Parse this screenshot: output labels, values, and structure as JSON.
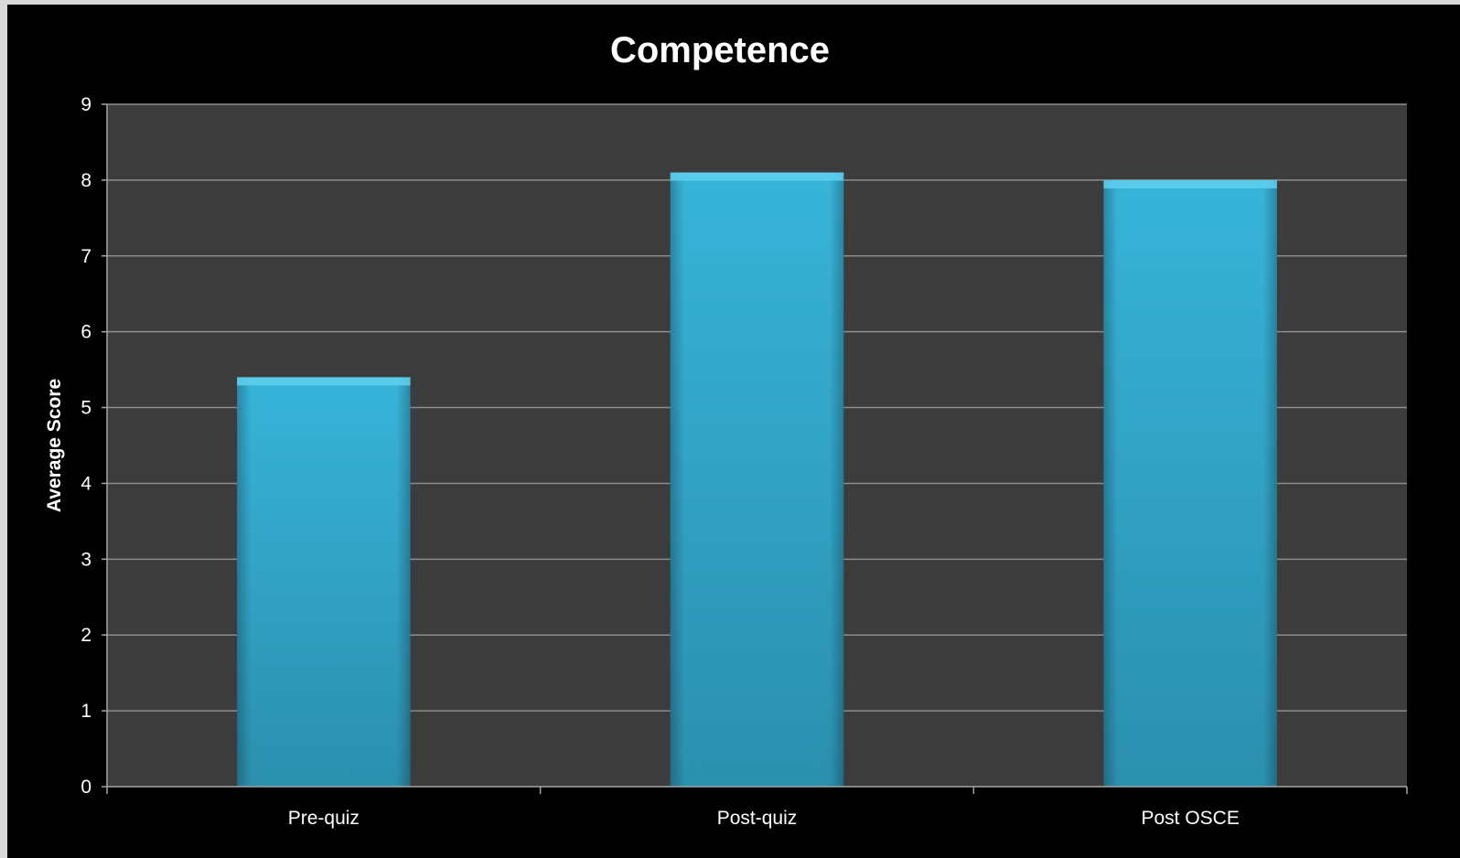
{
  "chart_data": {
    "type": "bar",
    "title": "Competence",
    "xlabel": "",
    "ylabel": "Average Score",
    "categories": [
      "Pre-quiz",
      "Post-quiz",
      "Post OSCE"
    ],
    "values": [
      5.4,
      8.1,
      8.0
    ],
    "ylim": [
      0,
      9
    ],
    "yticks": [
      0,
      1,
      2,
      3,
      4,
      5,
      6,
      7,
      8,
      9
    ],
    "grid": true,
    "legend": "none",
    "colors": {
      "background": "#000000",
      "plot_area": "#3c3c3c",
      "bar": "#37b4d9",
      "bar_dark": "#2b8fae",
      "bar_top": "#5fd0f0",
      "gridline": "#8c8c8c",
      "axis": "#a6a6a6",
      "text": "#ffffff"
    }
  }
}
